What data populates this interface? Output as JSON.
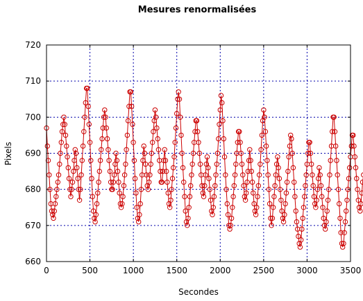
{
  "chart_data": {
    "type": "line",
    "title": "Mesures renormalisées",
    "xlabel": "Secondes",
    "ylabel": "Pixels",
    "xlim": [
      0,
      3500
    ],
    "ylim": [
      660,
      720
    ],
    "x_ticks": [
      0,
      500,
      1000,
      1500,
      2000,
      2500,
      3000,
      3500
    ],
    "y_ticks": [
      660,
      670,
      680,
      690,
      700,
      710,
      720
    ],
    "grid": true,
    "legend": "none",
    "series": [
      {
        "marker": "open-circle",
        "color": "#cc0000",
        "x_start": 0,
        "x_step": 10,
        "values": [
          697,
          692,
          688,
          684,
          680,
          676,
          674,
          673,
          672,
          674,
          676,
          678,
          680,
          682,
          684,
          687,
          690,
          693,
          696,
          698,
          700,
          698,
          695,
          692,
          689,
          686,
          683,
          680,
          678,
          680,
          682,
          685,
          688,
          691,
          690,
          686,
          683,
          680,
          677,
          680,
          684,
          688,
          692,
          696,
          700,
          704,
          708,
          708,
          703,
          698,
          693,
          688,
          683,
          678,
          674,
          672,
          671,
          673,
          676,
          679,
          682,
          685,
          688,
          691,
          694,
          697,
          700,
          702,
          700,
          697,
          694,
          691,
          688,
          685,
          682,
          680,
          680,
          682,
          684,
          687,
          690,
          688,
          685,
          682,
          679,
          676,
          675,
          676,
          678,
          681,
          684,
          687,
          691,
          695,
          699,
          703,
          707,
          707,
          703,
          698,
          693,
          688,
          683,
          679,
          675,
          672,
          671,
          673,
          676,
          680,
          684,
          688,
          692,
          690,
          687,
          684,
          681,
          680,
          682,
          684,
          687,
          690,
          693,
          696,
          699,
          702,
          700,
          697,
          694,
          691,
          688,
          685,
          682,
          682,
          685,
          688,
          691,
          688,
          685,
          682,
          679,
          676,
          675,
          677,
          680,
          683,
          686,
          689,
          693,
          697,
          701,
          705,
          707,
          705,
          700,
          695,
          690,
          686,
          682,
          678,
          674,
          671,
          670,
          672,
          675,
          678,
          681,
          684,
          687,
          690,
          693,
          696,
          699,
          699,
          696,
          693,
          690,
          687,
          684,
          681,
          679,
          678,
          681,
          684,
          687,
          689,
          686,
          683,
          680,
          677,
          674,
          673,
          675,
          678,
          681,
          684,
          687,
          690,
          694,
          698,
          702,
          706,
          704,
          699,
          694,
          689,
          684,
          680,
          676,
          673,
          670,
          669,
          670,
          672,
          675,
          678,
          681,
          684,
          687,
          690,
          693,
          696,
          696,
          693,
          690,
          687,
          684,
          681,
          678,
          677,
          679,
          682,
          685,
          688,
          691,
          688,
          685,
          682,
          679,
          676,
          674,
          673,
          675,
          678,
          681,
          684,
          687,
          691,
          695,
          699,
          702,
          700,
          696,
          692,
          688,
          684,
          680,
          676,
          672,
          670,
          672,
          675,
          678,
          681,
          684,
          687,
          689,
          686,
          683,
          680,
          677,
          674,
          672,
          671,
          673,
          676,
          679,
          682,
          685,
          689,
          692,
          695,
          694,
          690,
          686,
          682,
          678,
          674,
          671,
          669,
          667,
          665,
          664,
          666,
          669,
          672,
          675,
          678,
          681,
          684,
          687,
          690,
          693,
          693,
          690,
          687,
          684,
          681,
          678,
          676,
          675,
          677,
          680,
          683,
          686,
          684,
          681,
          678,
          675,
          672,
          670,
          669,
          671,
          674,
          677,
          680,
          684,
          688,
          692,
          696,
          700,
          700,
          696,
          692,
          688,
          684,
          680,
          676,
          672,
          668,
          665,
          664,
          665,
          668,
          671,
          674,
          677,
          680,
          683,
          686,
          689,
          692,
          695,
          695,
          692,
          689,
          686,
          683,
          680,
          677,
          675,
          674,
          676,
          679,
          682,
          684
        ]
      }
    ]
  }
}
